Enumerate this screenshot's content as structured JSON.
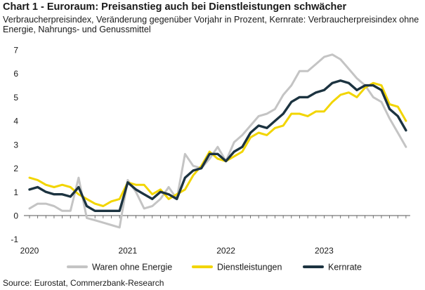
{
  "chart_data": {
    "type": "line",
    "title": "Chart 1 - Euroraum: Preisanstieg auch bei Dienstleistungen schwächer",
    "subtitle": "Verbraucherpreisindex, Veränderung gegenüber Vorjahr in Prozent, Kernrate: Verbraucherpreisindex ohne Energie, Nahrungs- und Genussmittel",
    "source": "Source: Eurostat, Commerzbank-Research",
    "xlabel": "",
    "ylabel": "",
    "ylim": [
      -1,
      7
    ],
    "yticks": [
      "-1",
      "0",
      "1",
      "2",
      "3",
      "4",
      "5",
      "6",
      "7"
    ],
    "xticks": [
      {
        "label": "2020",
        "x": "2020-01"
      },
      {
        "label": "2021",
        "x": "2021-01"
      },
      {
        "label": "2022",
        "x": "2022-01"
      },
      {
        "label": "2023",
        "x": "2023-01"
      }
    ],
    "grid": false,
    "legend_placement": "bottom",
    "x": [
      "2020-01",
      "2020-02",
      "2020-03",
      "2020-04",
      "2020-05",
      "2020-06",
      "2020-07",
      "2020-08",
      "2020-09",
      "2020-10",
      "2020-11",
      "2020-12",
      "2021-01",
      "2021-02",
      "2021-03",
      "2021-04",
      "2021-05",
      "2021-06",
      "2021-07",
      "2021-08",
      "2021-09",
      "2021-10",
      "2021-11",
      "2021-12",
      "2022-01",
      "2022-02",
      "2022-03",
      "2022-04",
      "2022-05",
      "2022-06",
      "2022-07",
      "2022-08",
      "2022-09",
      "2022-10",
      "2022-11",
      "2022-12",
      "2023-01",
      "2023-02",
      "2023-03",
      "2023-04",
      "2023-05",
      "2023-06",
      "2023-07",
      "2023-08",
      "2023-09",
      "2023-10",
      "2023-11"
    ],
    "series": [
      {
        "name": "Waren ohne Energie",
        "color": "#c4c4c4",
        "values": [
          0.3,
          0.5,
          0.5,
          0.4,
          0.2,
          0.2,
          1.6,
          -0.1,
          -0.2,
          -0.3,
          -0.4,
          -0.5,
          1.5,
          1.0,
          0.3,
          0.4,
          0.7,
          1.2,
          0.7,
          2.6,
          2.1,
          2.0,
          2.4,
          2.9,
          2.3,
          3.1,
          3.4,
          3.8,
          4.2,
          4.3,
          4.5,
          5.1,
          5.5,
          6.1,
          6.1,
          6.4,
          6.7,
          6.8,
          6.6,
          6.2,
          5.8,
          5.5,
          5.0,
          4.8,
          4.1,
          3.5,
          2.9
        ]
      },
      {
        "name": "Dienstleistungen",
        "color": "#f2d500",
        "values": [
          1.6,
          1.5,
          1.3,
          1.2,
          1.3,
          1.2,
          0.9,
          0.7,
          0.5,
          0.4,
          0.6,
          0.7,
          1.4,
          1.3,
          1.3,
          0.9,
          1.1,
          0.7,
          0.9,
          1.1,
          1.7,
          2.1,
          2.7,
          2.4,
          2.3,
          2.5,
          2.7,
          3.3,
          3.5,
          3.4,
          3.7,
          3.8,
          4.3,
          4.3,
          4.2,
          4.4,
          4.4,
          4.8,
          5.1,
          5.2,
          5.0,
          5.4,
          5.6,
          5.5,
          4.7,
          4.6,
          4.0
        ]
      },
      {
        "name": "Kernrate",
        "color": "#1c3340",
        "values": [
          1.1,
          1.2,
          1.0,
          0.9,
          0.9,
          0.8,
          1.2,
          0.4,
          0.2,
          0.2,
          0.2,
          0.2,
          1.4,
          1.1,
          0.9,
          0.7,
          1.0,
          0.9,
          0.7,
          1.6,
          1.9,
          2.0,
          2.6,
          2.6,
          2.3,
          2.7,
          2.9,
          3.5,
          3.8,
          3.7,
          4.0,
          4.3,
          4.8,
          5.0,
          5.0,
          5.2,
          5.3,
          5.6,
          5.7,
          5.6,
          5.3,
          5.5,
          5.5,
          5.3,
          4.5,
          4.2,
          3.6
        ]
      }
    ]
  }
}
